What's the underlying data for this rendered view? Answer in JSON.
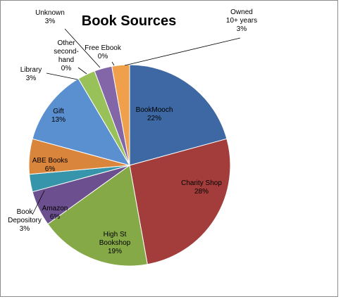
{
  "chart_data": {
    "type": "pie",
    "title": "Book Sources",
    "slices": [
      {
        "lines": [
          "BookMooch",
          "22%"
        ],
        "value": 22,
        "color": "#3d68a3"
      },
      {
        "lines": [
          "Charity Shop",
          "28%"
        ],
        "value": 28,
        "color": "#a33d3b"
      },
      {
        "lines": [
          "High St",
          "Bookshop",
          "19%"
        ],
        "value": 19,
        "color": "#86a947"
      },
      {
        "lines": [
          "Amazon",
          "6%"
        ],
        "value": 6,
        "color": "#6c4f8f"
      },
      {
        "lines": [
          "Book",
          "Depository",
          "3%"
        ],
        "value": 3,
        "color": "#3795ab"
      },
      {
        "lines": [
          "ABE Books",
          "6%"
        ],
        "value": 6,
        "color": "#d9853b"
      },
      {
        "lines": [
          "Gift",
          "13%"
        ],
        "value": 13,
        "color": "#5a8fd0"
      },
      {
        "lines": [
          "Library",
          "3%"
        ],
        "value": 3,
        "color": "#99c15a"
      },
      {
        "lines": [
          "Other",
          "second-",
          "hand",
          "0%"
        ],
        "value": 0,
        "color": "#4fb0cf"
      },
      {
        "lines": [
          "Unknown",
          "3%"
        ],
        "value": 3,
        "color": "#8266a8"
      },
      {
        "lines": [
          "Free Ebook",
          "0%"
        ],
        "value": 0,
        "color": "#3f73b8"
      },
      {
        "lines": [
          "Owned",
          "10+ years",
          "3%"
        ],
        "value": 3,
        "color": "#f0a04b"
      }
    ]
  }
}
